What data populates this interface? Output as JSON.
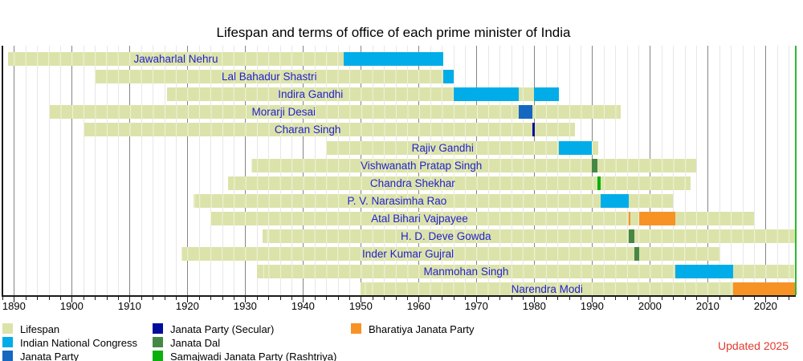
{
  "title": "Lifespan and terms of office of each prime minister of India",
  "updated_note": {
    "text": "Updated 2025",
    "color": "#e23b2e"
  },
  "chart_data": {
    "type": "timeline",
    "title": "Lifespan and terms of office of each prime minister of India",
    "x_axis": {
      "min": 1888,
      "max": 2025.2,
      "minor_tick_interval": 2,
      "major_tick_interval": 10,
      "tick_labels": [
        1890,
        1900,
        1910,
        1920,
        1930,
        1940,
        1950,
        1960,
        1970,
        1980,
        1990,
        2000,
        2010,
        2020
      ]
    },
    "grid": {
      "minor_color": "#e7e7e7",
      "major_color": "#858585"
    },
    "present_year": 2025.2,
    "present_line_color": "#2eb82e",
    "lifespan_color": "#dce3aa",
    "pm_label_color": "#2323cb",
    "parties": {
      "inc": {
        "name": "Indian National Congress",
        "color": "#00ade8"
      },
      "jp": {
        "name": "Janata Party",
        "color": "#1667c0"
      },
      "jps": {
        "name": "Janata Party (Secular)",
        "color": "#000d9b"
      },
      "jd": {
        "name": "Janata Dal",
        "color": "#468746"
      },
      "sjp": {
        "name": "Samajwadi Janata Party (Rashtriya)",
        "color": "#0cb00c"
      },
      "bjp": {
        "name": "Bharatiya Janata Party",
        "color": "#f79225"
      }
    },
    "prime_ministers": [
      {
        "name": "Jawaharlal Nehru",
        "lifespan": [
          1889,
          1964.3
        ],
        "terms": [
          {
            "start": 1947.0,
            "end": 1964.3,
            "party": "inc"
          }
        ]
      },
      {
        "name": "Lal Bahadur Shastri",
        "lifespan": [
          1904,
          1966.1
        ],
        "terms": [
          {
            "start": 1964.3,
            "end": 1966.1,
            "party": "inc"
          }
        ]
      },
      {
        "name": "Indira Gandhi",
        "lifespan": [
          1916.5,
          1984.3
        ],
        "terms": [
          {
            "start": 1966.1,
            "end": 1977.3,
            "party": "inc"
          },
          {
            "start": 1980.0,
            "end": 1984.3,
            "party": "inc"
          }
        ]
      },
      {
        "name": "Morarji Desai",
        "lifespan": [
          1896,
          1995
        ],
        "terms": [
          {
            "start": 1977.3,
            "end": 1979.6,
            "party": "jp"
          }
        ]
      },
      {
        "name": "Charan Singh",
        "lifespan": [
          1902,
          1987
        ],
        "terms": [
          {
            "start": 1979.6,
            "end": 1980.1,
            "party": "jps"
          }
        ]
      },
      {
        "name": "Rajiv Gandhi",
        "lifespan": [
          1944,
          1991
        ],
        "terms": [
          {
            "start": 1984.3,
            "end": 1989.9,
            "party": "inc"
          }
        ]
      },
      {
        "name": "Vishwanath Pratap Singh",
        "lifespan": [
          1931,
          2008
        ],
        "terms": [
          {
            "start": 1989.9,
            "end": 1990.9,
            "party": "jd"
          }
        ]
      },
      {
        "name": "Chandra Shekhar",
        "lifespan": [
          1927,
          2007
        ],
        "terms": [
          {
            "start": 1990.9,
            "end": 1991.5,
            "party": "sjp"
          }
        ]
      },
      {
        "name": "P. V. Narasimha Rao",
        "lifespan": [
          1921,
          2004
        ],
        "terms": [
          {
            "start": 1991.5,
            "end": 1996.3,
            "party": "inc"
          }
        ]
      },
      {
        "name": "Atal Bihari Vajpayee",
        "lifespan": [
          1924,
          2018
        ],
        "terms": [
          {
            "start": 1996.3,
            "end": 1996.65,
            "party": "bjp"
          },
          {
            "start": 1998.2,
            "end": 2004.4,
            "party": "bjp"
          }
        ]
      },
      {
        "name": "H. D. Deve Gowda",
        "lifespan": [
          1933,
          null
        ],
        "terms": [
          {
            "start": 1996.4,
            "end": 1997.3,
            "party": "jd"
          }
        ]
      },
      {
        "name": "Inder Kumar Gujral",
        "lifespan": [
          1919,
          2012
        ],
        "terms": [
          {
            "start": 1997.3,
            "end": 1998.2,
            "party": "jd"
          }
        ]
      },
      {
        "name": "Manmohan Singh",
        "lifespan": [
          1932,
          2024.95
        ],
        "terms": [
          {
            "start": 2004.4,
            "end": 2014.4,
            "party": "inc"
          }
        ]
      },
      {
        "name": "Narendra Modi",
        "lifespan": [
          1950,
          null
        ],
        "terms": [
          {
            "start": 2014.4,
            "end": null,
            "party": "bjp"
          }
        ]
      }
    ],
    "legend": {
      "columns": [
        [
          {
            "label": "Lifespan",
            "color_key": "lifespan"
          },
          {
            "label": "Indian National Congress",
            "color_key": "inc"
          },
          {
            "label": "Janata Party",
            "color_key": "jp"
          }
        ],
        [
          {
            "label": "Janata Party (Secular)",
            "color_key": "jps"
          },
          {
            "label": "Janata Dal",
            "color_key": "jd"
          },
          {
            "label": "Samajwadi Janata Party (Rashtriya)",
            "color_key": "sjp"
          }
        ],
        [
          {
            "label": "Bharatiya Janata Party",
            "color_key": "bjp"
          }
        ]
      ]
    }
  }
}
